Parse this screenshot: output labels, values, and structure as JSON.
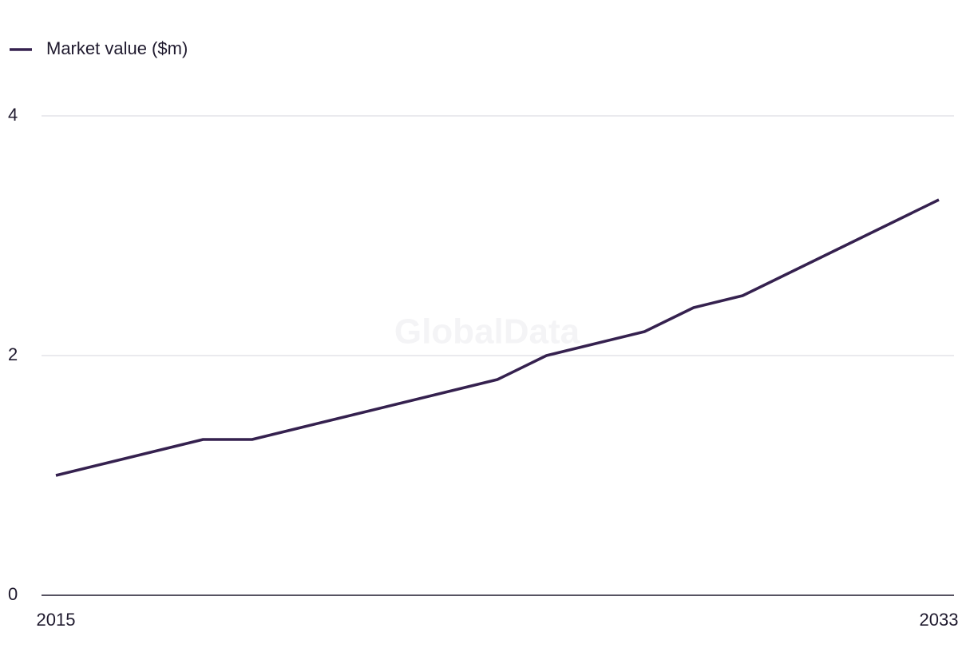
{
  "chart_data": {
    "type": "line",
    "watermark": "GlobalData",
    "x": [
      2015,
      2016,
      2017,
      2018,
      2019,
      2020,
      2021,
      2022,
      2023,
      2024,
      2025,
      2026,
      2027,
      2028,
      2029,
      2030,
      2031,
      2032,
      2033
    ],
    "series": [
      {
        "name": "Market value ($m)",
        "color": "#35214f",
        "values": [
          1.0,
          1.1,
          1.2,
          1.3,
          1.3,
          1.4,
          1.5,
          1.6,
          1.7,
          1.8,
          2.0,
          2.1,
          2.2,
          2.4,
          2.5,
          2.7,
          2.9,
          3.1,
          3.3
        ]
      }
    ],
    "xlim": [
      2015,
      2033
    ],
    "xticks": [
      2015,
      2033
    ],
    "ylim": [
      0,
      4
    ],
    "yticks": [
      0,
      2,
      4
    ],
    "grid": true,
    "legend": "top-left"
  }
}
